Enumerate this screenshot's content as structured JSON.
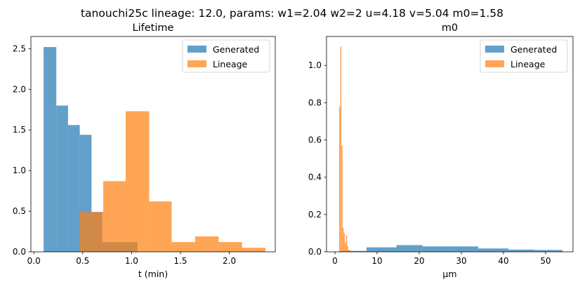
{
  "figure": {
    "suptitle": "tanouchi25c lineage: 12.0, params: w1=2.04 w2=2 u=4.18 v=5.04 m0=1.58"
  },
  "colors": {
    "generated": "#1f77b4",
    "lineage": "#ff7f0e"
  },
  "chart_data": [
    {
      "type": "bar",
      "histogram": true,
      "title": "Lifetime",
      "xlabel": "t (min)",
      "ylabel": "",
      "xlim": [
        -0.03,
        2.47
      ],
      "ylim": [
        0,
        2.65
      ],
      "xticks": [
        0.0,
        0.5,
        1.0,
        1.5,
        2.0
      ],
      "xtick_labels": [
        "0.0",
        "0.5",
        "1.0",
        "1.5",
        "2.0"
      ],
      "yticks": [
        0.0,
        0.5,
        1.0,
        1.5,
        2.0,
        2.5
      ],
      "ytick_labels": [
        "0.0",
        "0.5",
        "1.0",
        "1.5",
        "2.0",
        "2.5"
      ],
      "legend": {
        "position": "top-right",
        "entries": [
          "Generated",
          "Lineage"
        ]
      },
      "grid": false,
      "series": [
        {
          "name": "Generated",
          "bins": [
            [
              0.1,
              0.23,
              2.52
            ],
            [
              0.23,
              0.35,
              1.8
            ],
            [
              0.35,
              0.47,
              1.56
            ],
            [
              0.47,
              0.59,
              1.44
            ],
            [
              0.59,
              0.7,
              0.49
            ],
            [
              0.7,
              0.82,
              0.12
            ],
            [
              0.82,
              0.94,
              0.12
            ],
            [
              0.94,
              1.06,
              0.12
            ]
          ]
        },
        {
          "name": "Lineage",
          "bins": [
            [
              0.47,
              0.71,
              0.49
            ],
            [
              0.71,
              0.94,
              0.87
            ],
            [
              0.94,
              1.18,
              1.73
            ],
            [
              1.18,
              1.41,
              0.62
            ],
            [
              1.41,
              1.65,
              0.12
            ],
            [
              1.65,
              1.89,
              0.19
            ],
            [
              1.89,
              2.13,
              0.12
            ],
            [
              2.13,
              2.37,
              0.05
            ]
          ]
        }
      ]
    },
    {
      "type": "bar",
      "histogram": true,
      "title": "m0",
      "xlabel": "μm",
      "ylabel": "",
      "xlim": [
        -2.0,
        56.5
      ],
      "ylim": [
        0,
        1.155
      ],
      "xticks": [
        0,
        10,
        20,
        30,
        40,
        50
      ],
      "xtick_labels": [
        "0",
        "10",
        "20",
        "30",
        "40",
        "50"
      ],
      "yticks": [
        0.0,
        0.2,
        0.4,
        0.6,
        0.8,
        1.0
      ],
      "ytick_labels": [
        "0.0",
        "0.2",
        "0.4",
        "0.6",
        "0.8",
        "1.0"
      ],
      "legend": {
        "position": "top-right",
        "entries": [
          "Generated",
          "Lineage"
        ]
      },
      "grid": false,
      "series": [
        {
          "name": "Generated",
          "bins": [
            [
              1.3,
              7.5,
              0.005
            ],
            [
              7.5,
              14.6,
              0.024
            ],
            [
              14.6,
              20.8,
              0.036
            ],
            [
              20.8,
              27.7,
              0.029
            ],
            [
              27.7,
              34.0,
              0.029
            ],
            [
              34.0,
              41.2,
              0.018
            ],
            [
              41.2,
              47.3,
              0.012
            ],
            [
              47.3,
              54.0,
              0.01
            ]
          ]
        },
        {
          "name": "Lineage",
          "bins": [
            [
              1.0,
              1.27,
              0.78
            ],
            [
              1.27,
              1.54,
              1.1
            ],
            [
              1.54,
              1.81,
              0.57
            ],
            [
              1.81,
              2.08,
              0.13
            ],
            [
              2.08,
              2.35,
              0.1
            ],
            [
              2.35,
              2.62,
              0.05
            ],
            [
              2.62,
              2.89,
              0.09
            ],
            [
              2.89,
              3.16,
              0.03
            ],
            [
              3.16,
              3.43,
              0.01
            ],
            [
              3.43,
              3.7,
              0.01
            ]
          ]
        }
      ]
    }
  ]
}
